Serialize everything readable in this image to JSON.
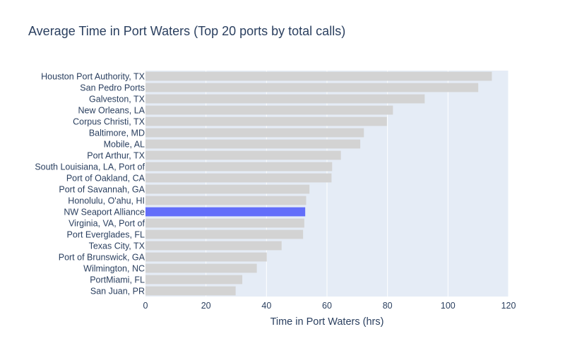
{
  "chart_data": {
    "type": "bar",
    "orientation": "horizontal",
    "title": "Average Time in Port Waters (Top 20 ports by total calls)",
    "xlabel": "Time in Port Waters (hrs)",
    "ylabel": "",
    "xlim": [
      0,
      120
    ],
    "x_ticks": [
      0,
      20,
      40,
      60,
      80,
      100,
      120
    ],
    "grid": true,
    "categories": [
      "Houston Port Authority, TX",
      "San Pedro Ports",
      "Galveston, TX",
      "New Orleans, LA",
      "Corpus Christi, TX",
      "Baltimore, MD",
      "Mobile, AL",
      "Port Arthur, TX",
      "South Louisiana, LA, Port of",
      "Port of Oakland, CA",
      "Port of Savannah, GA",
      "Honolulu, O'ahu, HI",
      "NW Seaport Alliance",
      "Virginia, VA, Port of",
      "Port Everglades, FL",
      "Texas City, TX",
      "Port of Brunswick, GA",
      "Wilmington, NC",
      "PortMiami, FL",
      "San Juan, PR"
    ],
    "values": [
      114.5,
      110,
      92.3,
      81.8,
      79.8,
      72.2,
      71,
      64.6,
      61.7,
      61.5,
      54.2,
      53.1,
      52.8,
      52.5,
      52.1,
      45,
      40.1,
      36.8,
      32,
      29.8
    ],
    "highlight": "NW Seaport Alliance",
    "colors": {
      "default_bar": "#d3d3d3",
      "highlight_bar": "#636efa",
      "plot_bg": "#e5ecf6",
      "grid": "#ffffff",
      "text": "#2a3f5f"
    }
  }
}
